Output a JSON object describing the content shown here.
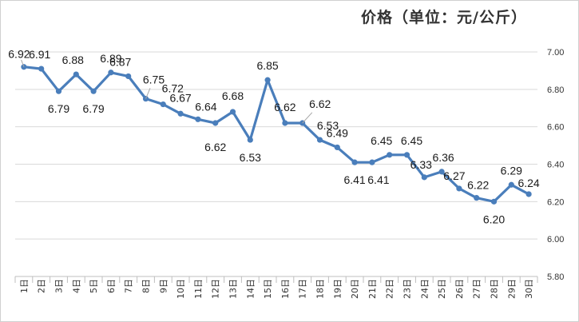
{
  "chart_data": {
    "type": "line",
    "title": "价格（单位：元/公斤）",
    "categories": [
      "1日",
      "2日",
      "3日",
      "4日",
      "5日",
      "6日",
      "7日",
      "8日",
      "9日",
      "10日",
      "11日",
      "12日",
      "13日",
      "14日",
      "15日",
      "16日",
      "17日",
      "18日",
      "19日",
      "20日",
      "21日",
      "22日",
      "23日",
      "24日",
      "25日",
      "26日",
      "27日",
      "28日",
      "29日",
      "30日"
    ],
    "series": [
      {
        "values": [
          6.92,
          6.91,
          6.79,
          6.88,
          6.79,
          6.89,
          6.87,
          6.75,
          6.72,
          6.67,
          6.64,
          6.62,
          6.68,
          6.53,
          6.85,
          6.62,
          6.62,
          6.53,
          6.49,
          6.41,
          6.41,
          6.45,
          6.45,
          6.33,
          6.36,
          6.27,
          6.22,
          6.2,
          6.29,
          6.24
        ]
      }
    ],
    "data_labels": [
      "6.92",
      "6.91",
      "6.79",
      "6.88",
      "6.79",
      "6.89",
      "6.87",
      "6.75",
      "6.72",
      "6.67",
      "6.64",
      "6.62",
      "6.68",
      "6.53",
      "6.85",
      "6.62",
      "6.62",
      "6.53",
      "6.49",
      "6.41",
      "6.41",
      "6.45",
      "6.45",
      "6.33",
      "6.36",
      "6.27",
      "6.22",
      "6.20",
      "6.29",
      "6.24"
    ],
    "y_ticks": [
      "5.80",
      "6.00",
      "6.20",
      "6.40",
      "6.60",
      "6.80",
      "7.00"
    ],
    "ylim": [
      5.8,
      7.0
    ],
    "y_axis_side": "right",
    "grid": true,
    "legend": "none",
    "line_color": "#4a7ebb",
    "grid_color": "#d9d9d9"
  }
}
